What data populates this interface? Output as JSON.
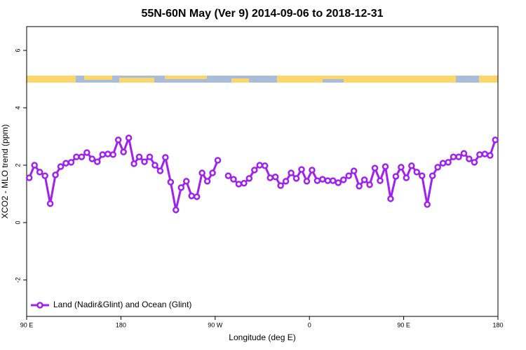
{
  "chart_data": {
    "type": "line",
    "title": "55N-60N May (Ver 9)   2014-09-06 to 2018-12-31",
    "x_label": "Longitude (deg E)",
    "y_label": "XCO2 - MLO trend (ppm)",
    "xlim": [
      90,
      540
    ],
    "xticks": [
      {
        "value": 90,
        "label": "90 E"
      },
      180,
      {
        "value": 270,
        "label": "90 W"
      },
      {
        "value": 360,
        "label": "0"
      },
      {
        "value": 450,
        "label": "90 E"
      },
      {
        "value": 540,
        "label": "180"
      }
    ],
    "ylim": [
      -3.27,
      6.83
    ],
    "yticks": [
      -2,
      0,
      2,
      4,
      6
    ],
    "legend": "bottom-left",
    "x": [
      92.5,
      97.5,
      102.5,
      107.5,
      112.5,
      117.5,
      122.5,
      127.5,
      132.5,
      137.5,
      142.5,
      147.5,
      152.5,
      157.5,
      162.5,
      167.5,
      172.5,
      177.5,
      182.5,
      187.5,
      192.5,
      197.5,
      202.5,
      207.5,
      212.5,
      217.5,
      222.5,
      227.5,
      232.5,
      237.5,
      242.5,
      247.5,
      252.5,
      257.5,
      262.5,
      267.5,
      272.5,
      277.5,
      282.5,
      287.5,
      292.5,
      297.5,
      302.5,
      307.5,
      312.5,
      317.5,
      322.5,
      327.5,
      332.5,
      337.5,
      342.5,
      347.5,
      352.5,
      357.5,
      362.5,
      367.5,
      372.5,
      377.5,
      382.5,
      387.5,
      392.5,
      397.5,
      402.5,
      407.5,
      412.5,
      417.5,
      422.5,
      427.5,
      432.5,
      437.5,
      442.5,
      447.5,
      452.5,
      457.5,
      462.5,
      467.5,
      472.5,
      477.5,
      482.5,
      487.5,
      492.5,
      497.5,
      502.5,
      507.5,
      512.5,
      517.5,
      522.5,
      527.5,
      532.5,
      537.5
    ],
    "series": [
      {
        "name": "Land (Nadir&Glint) and Ocean (Glint)",
        "color": "#a020f0",
        "values": [
          1.56,
          2.0,
          1.76,
          1.63,
          0.66,
          1.66,
          1.95,
          2.07,
          2.1,
          2.29,
          2.29,
          2.44,
          2.22,
          2.12,
          2.37,
          2.39,
          2.37,
          2.88,
          2.46,
          2.95,
          2.05,
          2.29,
          2.12,
          2.29,
          2.0,
          1.8,
          2.27,
          1.41,
          0.44,
          1.22,
          1.44,
          0.93,
          0.9,
          1.73,
          1.44,
          1.73,
          2.17,
          null,
          1.63,
          1.51,
          1.34,
          1.37,
          1.54,
          1.83,
          2.0,
          1.98,
          1.56,
          1.59,
          1.29,
          1.44,
          1.73,
          1.54,
          1.85,
          1.44,
          1.83,
          1.46,
          1.51,
          1.46,
          1.46,
          1.39,
          1.49,
          1.63,
          1.8,
          1.27,
          1.49,
          1.32,
          1.9,
          1.46,
          1.95,
          0.83,
          1.61,
          1.93,
          1.56,
          1.98,
          1.76,
          1.63,
          0.63,
          1.63,
          1.93,
          2.07,
          2.1,
          2.29,
          2.29,
          2.41,
          2.22,
          2.1,
          2.37,
          2.39,
          2.34,
          2.88
        ]
      }
    ]
  }
}
